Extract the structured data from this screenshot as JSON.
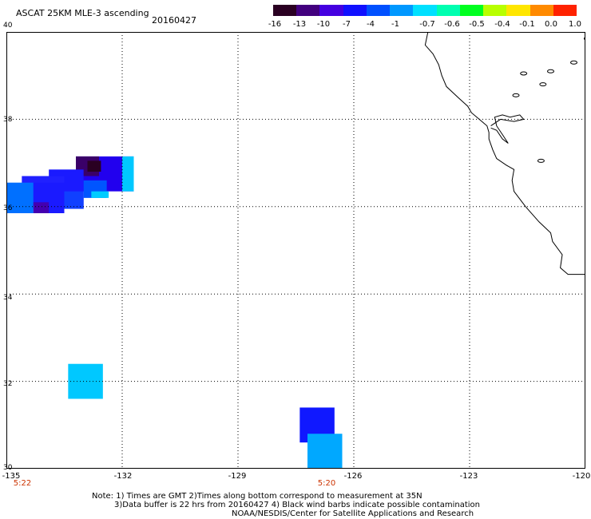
{
  "header": {
    "title": "ASCAT 25KM MLE-3 ascending",
    "date": "20160427"
  },
  "colorbar": {
    "labels": [
      "-16",
      "-13",
      "-10",
      "-7",
      "-4",
      "-1",
      "-0.7",
      "-0.6",
      "-0.5",
      "-0.4",
      "-0.1",
      "0.0",
      "1.0"
    ],
    "colors": [
      "#2a0022",
      "#42007e",
      "#4400e0",
      "#1010ff",
      "#0050ff",
      "#0098ff",
      "#00e0ff",
      "#00ffb0",
      "#00ff20",
      "#b8ff00",
      "#ffe600",
      "#ff8a00",
      "#ff2200"
    ]
  },
  "map": {
    "lat_labels": [
      "40",
      "38",
      "36",
      "34",
      "32",
      "30"
    ],
    "lon_labels": [
      "-135",
      "-132",
      "-129",
      "-126",
      "-123",
      "-120"
    ],
    "time_labels": [
      {
        "text": "5:22",
        "lon": -135
      },
      {
        "text": "5:20",
        "lon": -127.2
      }
    ],
    "swaths": [
      {
        "lon0": -133.2,
        "lon1": -131.7,
        "lat0": 36.35,
        "lat1": 37.15,
        "color": "#2200ee"
      },
      {
        "lon0": -133.2,
        "lon1": -132.6,
        "lat0": 36.7,
        "lat1": 37.15,
        "color": "#3a0068"
      },
      {
        "lon0": -132.9,
        "lon1": -132.55,
        "lat0": 36.8,
        "lat1": 37.05,
        "color": "#2a0022"
      },
      {
        "lon0": -132.0,
        "lon1": -131.7,
        "lat0": 36.35,
        "lat1": 37.15,
        "color": "#00c8ff"
      },
      {
        "lon0": -133.9,
        "lon1": -133.0,
        "lat0": 35.95,
        "lat1": 36.85,
        "color": "#1a1aff"
      },
      {
        "lon0": -133.0,
        "lon1": -132.4,
        "lat0": 36.2,
        "lat1": 36.6,
        "color": "#0055ff"
      },
      {
        "lon0": -132.8,
        "lon1": -132.35,
        "lat0": 36.2,
        "lat1": 36.35,
        "color": "#00ccff"
      },
      {
        "lon0": -134.6,
        "lon1": -133.5,
        "lat0": 35.95,
        "lat1": 36.7,
        "color": "#2020ff"
      },
      {
        "lon0": -133.5,
        "lon1": -133.0,
        "lat0": 35.95,
        "lat1": 36.35,
        "color": "#1040ff"
      },
      {
        "lon0": -135.0,
        "lon1": -134.3,
        "lat0": 35.85,
        "lat1": 36.55,
        "color": "#0070ff"
      },
      {
        "lon0": -134.3,
        "lon1": -133.5,
        "lat0": 35.85,
        "lat1": 36.55,
        "color": "#1a1aff"
      },
      {
        "lon0": -134.3,
        "lon1": -133.9,
        "lat0": 35.85,
        "lat1": 36.1,
        "color": "#4400b0"
      },
      {
        "lon0": -133.4,
        "lon1": -132.5,
        "lat0": 31.6,
        "lat1": 32.4,
        "color": "#00c8ff"
      },
      {
        "lon0": -127.4,
        "lon1": -126.5,
        "lat0": 30.6,
        "lat1": 31.4,
        "color": "#1018ff"
      },
      {
        "lon0": -127.2,
        "lon1": -126.3,
        "lat0": 30.0,
        "lat1": 30.8,
        "color": "#00a8ff"
      }
    ],
    "coast": [
      [
        -124.08,
        40.0
      ],
      [
        -124.15,
        39.7
      ],
      [
        -123.95,
        39.5
      ],
      [
        -123.8,
        39.25
      ],
      [
        -123.72,
        39.0
      ],
      [
        -123.6,
        38.75
      ],
      [
        -123.3,
        38.5
      ],
      [
        -123.05,
        38.3
      ],
      [
        -122.95,
        38.15
      ],
      [
        -122.75,
        38.0
      ],
      [
        -122.55,
        37.85
      ],
      [
        -122.5,
        37.7
      ],
      [
        -122.5,
        37.55
      ],
      [
        -122.4,
        37.3
      ],
      [
        -122.3,
        37.1
      ],
      [
        -122.05,
        36.95
      ],
      [
        -121.85,
        36.85
      ],
      [
        -121.9,
        36.6
      ],
      [
        -121.85,
        36.35
      ],
      [
        -121.55,
        36.0
      ],
      [
        -121.2,
        35.65
      ],
      [
        -120.9,
        35.4
      ],
      [
        -120.85,
        35.2
      ],
      [
        -120.6,
        34.9
      ],
      [
        -120.65,
        34.6
      ],
      [
        -120.45,
        34.45
      ],
      [
        -120.0,
        34.45
      ],
      [
        -119.5,
        34.4
      ]
    ],
    "bay": [
      [
        -122.45,
        37.8
      ],
      [
        -122.3,
        37.75
      ],
      [
        -122.15,
        37.55
      ],
      [
        -122.0,
        37.45
      ],
      [
        -122.15,
        37.65
      ],
      [
        -122.3,
        37.85
      ],
      [
        -122.35,
        38.05
      ],
      [
        -122.15,
        38.1
      ],
      [
        -121.95,
        38.05
      ],
      [
        -121.7,
        38.1
      ],
      [
        -121.6,
        38.0
      ],
      [
        -121.85,
        37.95
      ],
      [
        -122.2,
        38.0
      ],
      [
        -122.45,
        37.85
      ]
    ],
    "islands": [
      {
        "lon": -121.6,
        "lat": 39.05
      },
      {
        "lon": -121.8,
        "lat": 38.55
      },
      {
        "lon": -120.9,
        "lat": 39.1
      },
      {
        "lon": -120.3,
        "lat": 39.3
      },
      {
        "lon": -121.1,
        "lat": 38.8
      },
      {
        "lon": -119.95,
        "lat": 39.85
      },
      {
        "lon": -121.15,
        "lat": 37.05
      },
      {
        "lon": -119.75,
        "lat": 34.02
      },
      {
        "lon": -119.45,
        "lat": 33.98
      }
    ]
  },
  "notes": {
    "line1": "Note: 1) Times are GMT 2)Times along bottom correspond to measurement at 35N",
    "line2": "3)Data buffer is 22 hrs from 20160427 4) Black wind barbs indicate possible contamination",
    "line3": "NOAA/NESDIS/Center for Satellite Applications and Research"
  }
}
